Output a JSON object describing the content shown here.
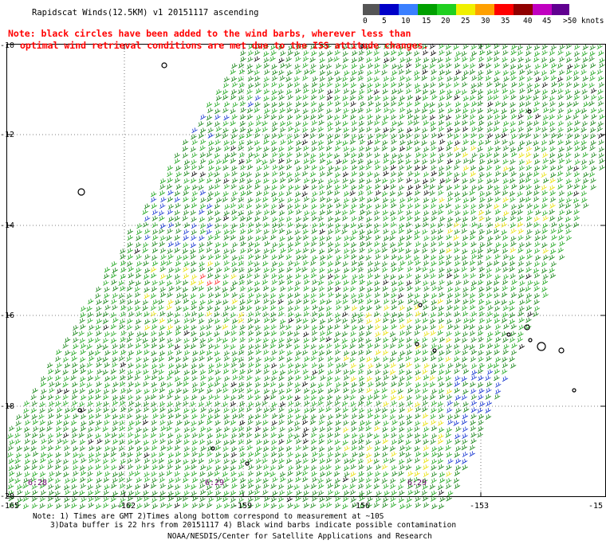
{
  "title": "Rapidscat Winds(12.5KM) v1 20151117 ascending",
  "red_note_line1": "Note: black circles have been added to the wind barbs, wherever less than",
  "red_note_line2": "optimal wind retrieval conditions are met due to the ISS attitude changes.",
  "colorbar": {
    "labels": [
      "0",
      "5",
      "10",
      "15",
      "20",
      "25",
      "30",
      "35",
      "40",
      "45",
      ">50 knots"
    ],
    "colors": [
      "#555555",
      "#0000c8",
      "#3a7fff",
      "#00a000",
      "#20d020",
      "#f0f000",
      "#ffa000",
      "#ff0000",
      "#900000",
      "#c000c0",
      "#600090"
    ]
  },
  "lat_labels": [
    "-10",
    "-12",
    "-14",
    "-16",
    "-18",
    "-20"
  ],
  "lon_labels": [
    "-165",
    "-162",
    "-159",
    "-156",
    "-153",
    "-15"
  ],
  "time_labels": [
    "6:28",
    "6:29",
    "6:29"
  ],
  "footer": {
    "line1": "Note: 1) Times are GMT 2)Times along bottom correspond to measurement at ~10S",
    "line2": "3)Data buffer is 22 hrs from 20151117 4) Black wind barbs indicate possible contamination",
    "credit": "NOAA/NESDIS/Center for Satellite Applications and Research"
  }
}
